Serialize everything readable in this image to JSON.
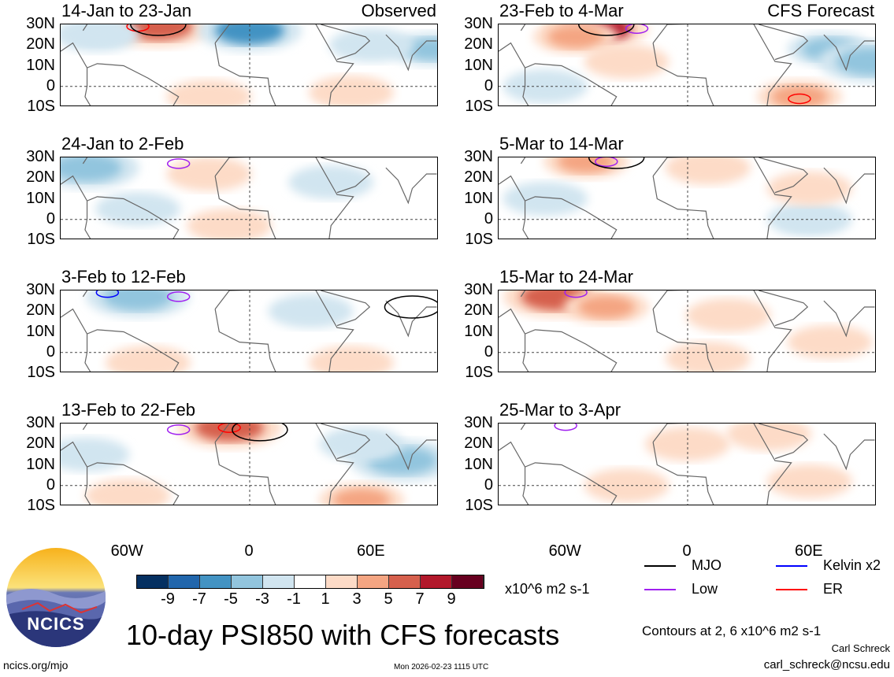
{
  "labels": {
    "observed": "Observed",
    "forecast": "CFS Forecast",
    "lat_ticks": [
      "30N",
      "20N",
      "10N",
      "0",
      "10S"
    ],
    "lon_ticks": [
      "60W",
      "0",
      "60E"
    ]
  },
  "colorbar": {
    "colors": [
      "#053061",
      "#2166ac",
      "#4393c3",
      "#92c5de",
      "#d1e5f0",
      "#ffffff",
      "#fddbc7",
      "#f4a582",
      "#d6604d",
      "#b2182b",
      "#67001f"
    ],
    "ticks": [
      "-9",
      "-7",
      "-5",
      "-3",
      "-1",
      "1",
      "3",
      "5",
      "7",
      "9"
    ],
    "units": "x10^6 m2 s-1"
  },
  "legend": [
    {
      "label": "MJO",
      "color": "#000000"
    },
    {
      "label": "Kelvin x2",
      "color": "#0000ff"
    },
    {
      "label": "Low",
      "color": "#a020f0"
    },
    {
      "label": "ER",
      "color": "#ff0000"
    }
  ],
  "contours_note": "Contours at 2, 6 x10^6 m2 s-1",
  "title": "10-day PSI850 with CFS forecasts",
  "author": "Carl Schreck",
  "email": "carl_schreck@ncsu.edu",
  "site": "ncics.org/mjo",
  "timestamp": "Mon 2026-02-23 1115 UTC",
  "logo_text": "NCICS",
  "chart_data": {
    "type": "heatmap",
    "variable": "PSI850 anomaly",
    "lon_range": [
      -93,
      93
    ],
    "lat_range": [
      -10,
      30
    ],
    "panels": [
      {
        "title": "14-Jan to 23-Jan",
        "blobs": [
          [
            -45,
            29,
            5
          ],
          [
            0,
            27,
            -7
          ],
          [
            90,
            18,
            -4
          ],
          [
            -75,
            25,
            -3
          ],
          [
            -20,
            -5,
            2
          ],
          [
            50,
            -3,
            2
          ],
          [
            60,
            20,
            -2
          ]
        ],
        "contours": [
          [
            "ER",
            -55,
            29
          ],
          [
            "MJO",
            -45,
            30
          ]
        ]
      },
      {
        "title": "24-Jan to 2-Feb",
        "blobs": [
          [
            -80,
            25,
            -5
          ],
          [
            -20,
            22,
            2
          ],
          [
            40,
            18,
            -2
          ],
          [
            -10,
            -3,
            2
          ],
          [
            -55,
            5,
            -2
          ]
        ],
        "contours": [
          [
            "Low",
            -35,
            27
          ]
        ]
      },
      {
        "title": "3-Feb to 12-Feb",
        "blobs": [
          [
            -55,
            27,
            -5
          ],
          [
            30,
            20,
            -2
          ],
          [
            -50,
            -5,
            2
          ],
          [
            50,
            -5,
            2
          ]
        ],
        "contours": [
          [
            "Kelvin x2",
            -70,
            29
          ],
          [
            "Low",
            -35,
            27
          ],
          [
            "MJO",
            80,
            22
          ]
        ]
      },
      {
        "title": "13-Feb to 22-Feb",
        "blobs": [
          [
            -10,
            28,
            5
          ],
          [
            75,
            12,
            -5
          ],
          [
            55,
            20,
            -3
          ],
          [
            55,
            -7,
            3
          ],
          [
            -60,
            -5,
            2
          ],
          [
            -80,
            15,
            -2
          ]
        ],
        "contours": [
          [
            "Low",
            -35,
            27
          ],
          [
            "ER",
            -10,
            28
          ],
          [
            "MJO",
            5,
            27
          ]
        ]
      },
      {
        "title": "23-Feb to 4-Mar",
        "blobs": [
          [
            -45,
            28,
            7
          ],
          [
            -55,
            24,
            3
          ],
          [
            70,
            18,
            -4
          ],
          [
            90,
            12,
            -5
          ],
          [
            55,
            -5,
            3
          ],
          [
            -30,
            12,
            2
          ],
          [
            -70,
            0,
            -2
          ]
        ],
        "contours": [
          [
            "ER",
            55,
            -6
          ],
          [
            "Low",
            -25,
            28
          ],
          [
            "MJO",
            -40,
            30
          ]
        ]
      },
      {
        "title": "5-Mar to 14-Mar",
        "blobs": [
          [
            -50,
            28,
            3
          ],
          [
            10,
            25,
            2
          ],
          [
            -70,
            10,
            -2
          ],
          [
            60,
            0,
            -3
          ],
          [
            60,
            15,
            2
          ]
        ],
        "contours": [
          [
            "Low",
            -40,
            28
          ],
          [
            "MJO",
            -35,
            30
          ]
        ]
      },
      {
        "title": "15-Mar to 24-Mar",
        "blobs": [
          [
            -65,
            27,
            5
          ],
          [
            -40,
            22,
            3
          ],
          [
            20,
            18,
            2
          ],
          [
            10,
            -3,
            2
          ],
          [
            70,
            5,
            2
          ]
        ],
        "contours": [
          [
            "Low",
            -55,
            29
          ]
        ]
      },
      {
        "title": "25-Mar to 3-Apr",
        "blobs": [
          [
            0,
            20,
            2
          ],
          [
            -30,
            0,
            2
          ],
          [
            60,
            2,
            2
          ],
          [
            40,
            25,
            2
          ]
        ],
        "contours": [
          [
            "Low",
            -60,
            29
          ]
        ]
      }
    ]
  }
}
